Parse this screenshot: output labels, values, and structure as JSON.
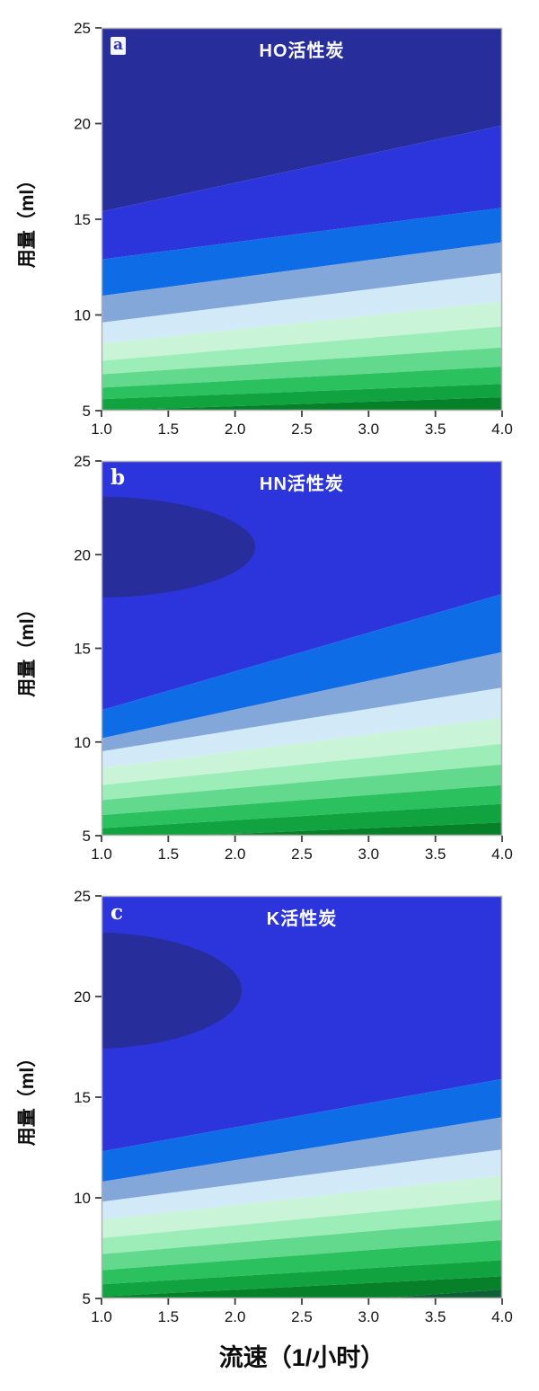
{
  "figure": {
    "xlabel": "流速（1/小时）",
    "ylabel": "用量（ml）",
    "x_tick_labels": [
      "1.0",
      "1.5",
      "2.0",
      "2.5",
      "3.0",
      "3.5",
      "4.0"
    ],
    "y_tick_labels": [
      "25",
      "20",
      "15",
      "10",
      "5"
    ]
  },
  "palette": {
    "levels": [
      "#272d9b",
      "#2c34dc",
      "#0e6ce6",
      "#84a7da",
      "#d2eaf8",
      "#c9f4d8",
      "#9dedb9",
      "#63d98e",
      "#2cc15f",
      "#11a33f",
      "#068129",
      "#0d5f36"
    ],
    "frame": "#b0b0b0",
    "tick": "#3c3c3c",
    "text": "#141414",
    "title_text": "#ffffff"
  },
  "chart_data": [
    {
      "type": "heatmap",
      "panel_letter": "a",
      "title": "HO活性炭",
      "x_range": [
        1.0,
        4.0
      ],
      "y_range": [
        5,
        25
      ],
      "x_ticks": [
        1.0,
        1.5,
        2.0,
        2.5,
        3.0,
        3.5,
        4.0
      ],
      "y_ticks": [
        25,
        20,
        15,
        10,
        5
      ],
      "boundaries_note": "filled contour band edges; each pair is [y at x=1.0, y at x=4.0], bands colored top-to-bottom with palette.levels",
      "boundaries": [
        [
          15.4,
          19.9
        ],
        [
          12.9,
          15.6
        ],
        [
          11.0,
          13.8
        ],
        [
          9.6,
          12.2
        ],
        [
          8.5,
          10.7
        ],
        [
          7.6,
          9.4
        ],
        [
          6.9,
          8.3
        ],
        [
          6.2,
          7.3
        ],
        [
          5.6,
          6.4
        ],
        [
          5.0,
          5.7
        ],
        [
          4.4,
          5.05
        ]
      ],
      "blob": null
    },
    {
      "type": "heatmap",
      "panel_letter": "b",
      "title": "HN活性炭",
      "x_range": [
        1.0,
        4.0
      ],
      "y_range": [
        5,
        25
      ],
      "x_ticks": [
        1.0,
        1.5,
        2.0,
        2.5,
        3.0,
        3.5,
        4.0
      ],
      "y_ticks": [
        25,
        20,
        15,
        10,
        5
      ],
      "boundaries_note": "first edge above plot top: darkest level appears only as the ellipse blob",
      "boundaries": [
        [
          26,
          26
        ],
        [
          11.7,
          17.9
        ],
        [
          10.2,
          14.8
        ],
        [
          9.5,
          12.9
        ],
        [
          8.6,
          11.3
        ],
        [
          7.7,
          9.9
        ],
        [
          6.9,
          8.8
        ],
        [
          6.1,
          7.7
        ],
        [
          5.4,
          6.7
        ],
        [
          4.8,
          5.7
        ],
        [
          4.1,
          4.95
        ]
      ],
      "blob": {
        "cx": 0.95,
        "cy": 20.4,
        "rx": 1.2,
        "ry": 2.7
      }
    },
    {
      "type": "heatmap",
      "panel_letter": "c",
      "title": "K活性炭",
      "x_range": [
        1.0,
        4.0
      ],
      "y_range": [
        5,
        25
      ],
      "x_ticks": [
        1.0,
        1.5,
        2.0,
        2.5,
        3.0,
        3.5,
        4.0
      ],
      "y_ticks": [
        25,
        20,
        15,
        10,
        5
      ],
      "boundaries_note": "first edge above plot top: darkest level appears only as the ellipse blob",
      "boundaries": [
        [
          26,
          26
        ],
        [
          12.3,
          15.9
        ],
        [
          10.8,
          14.0
        ],
        [
          9.8,
          12.4
        ],
        [
          8.9,
          11.1
        ],
        [
          8.0,
          9.9
        ],
        [
          7.2,
          8.9
        ],
        [
          6.4,
          7.9
        ],
        [
          5.7,
          6.9
        ],
        [
          5.1,
          6.1
        ],
        [
          4.0,
          5.45
        ]
      ],
      "blob": {
        "cx": 0.9,
        "cy": 20.3,
        "rx": 1.15,
        "ry": 2.9
      }
    }
  ]
}
